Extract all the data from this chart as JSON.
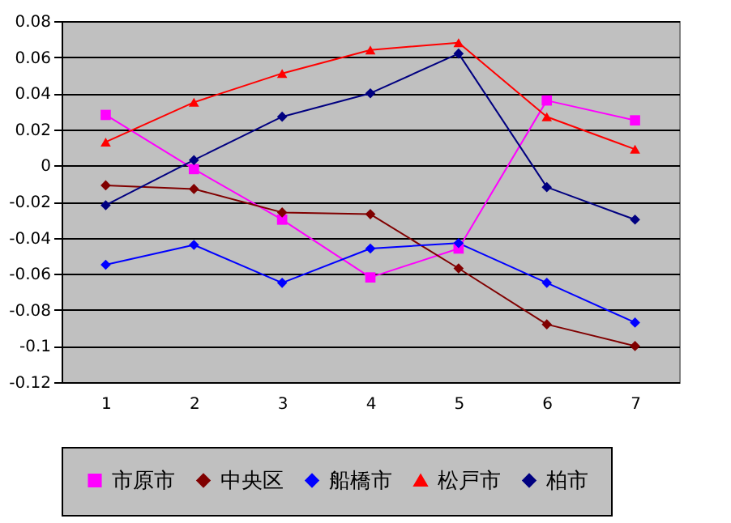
{
  "chart_data": {
    "type": "line",
    "categories": [
      "1",
      "2",
      "3",
      "4",
      "5",
      "6",
      "7"
    ],
    "series": [
      {
        "name": "市原市",
        "color": "#ff00ff",
        "marker": "square",
        "values": [
          0.028,
          -0.002,
          -0.03,
          -0.062,
          -0.046,
          0.036,
          0.025
        ]
      },
      {
        "name": "中央区",
        "color": "#800000",
        "marker": "diamond",
        "values": [
          -0.011,
          -0.013,
          -0.026,
          -0.027,
          -0.057,
          -0.088,
          -0.1
        ]
      },
      {
        "name": "船橋市",
        "color": "#0000ff",
        "marker": "diamond",
        "values": [
          -0.055,
          -0.044,
          -0.065,
          -0.046,
          -0.043,
          -0.065,
          -0.087
        ]
      },
      {
        "name": "松戸市",
        "color": "#ff0000",
        "marker": "triangle",
        "values": [
          0.013,
          0.035,
          0.051,
          0.064,
          0.068,
          0.027,
          0.009
        ]
      },
      {
        "name": "柏市",
        "color": "#000080",
        "marker": "diamond",
        "values": [
          -0.022,
          0.003,
          0.027,
          0.04,
          0.062,
          -0.012,
          -0.03
        ]
      }
    ],
    "ylim": [
      -0.12,
      0.08
    ],
    "yticks": [
      -0.12,
      -0.1,
      -0.08,
      -0.06,
      -0.04,
      -0.02,
      0,
      0.02,
      0.04,
      0.06,
      0.08
    ],
    "grid": "y",
    "legend": "bottom"
  }
}
